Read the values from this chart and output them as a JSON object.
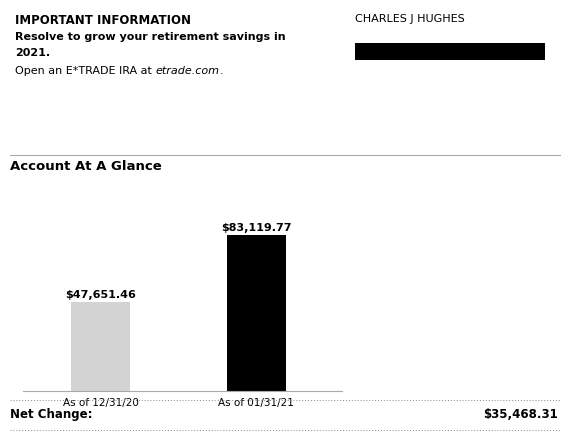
{
  "title_important": "IMPORTANT INFORMATION",
  "subtitle_line1": "Resolve to grow your retirement savings in",
  "subtitle_line2": "2021.",
  "etrade_prefix": "Open an E*TRADE IRA at ",
  "etrade_italic": "etrade.com",
  "etrade_suffix": ".",
  "name": "CHARLES J HUGHES",
  "redacted_box_color": "#000000",
  "section_title": "Account At A Glance",
  "bar1_value": 47651.46,
  "bar1_label": "As of 12/31/20",
  "bar1_display": "$47,651.46",
  "bar1_color": "#d3d3d3",
  "bar2_value": 83119.77,
  "bar2_label": "As of 01/31/21",
  "bar2_display": "$83,119.77",
  "bar2_color": "#000000",
  "net_change_label": "Net Change:",
  "net_change_value": "$35,468.31",
  "background_color": "#ffffff"
}
